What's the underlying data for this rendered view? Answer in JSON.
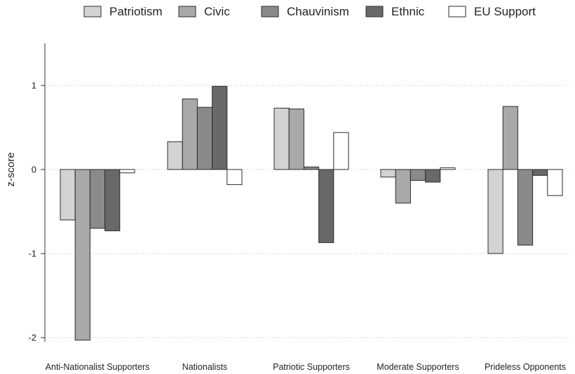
{
  "chart_data": {
    "type": "bar",
    "ylabel": "z-score",
    "ylim": [
      -2.05,
      1.5
    ],
    "yticks": [
      1,
      0,
      -1,
      -2
    ],
    "ytick_labels": [
      "1",
      "0",
      "-1",
      "-2"
    ],
    "grid": "horizontal-dotted",
    "legend_position": "top",
    "categories": [
      "Anti-Nationalist Supporters",
      "Nationalists",
      "Patriotic Supporters",
      "Moderate Supporters",
      "Prideless Opponents"
    ],
    "series": [
      {
        "name": "Patriotism",
        "color": "#d3d3d3",
        "values": [
          -0.6,
          0.33,
          0.73,
          -0.09,
          -1.0
        ]
      },
      {
        "name": "Civic",
        "color": "#a9a9a9",
        "values": [
          -2.03,
          0.84,
          0.72,
          -0.4,
          0.75
        ]
      },
      {
        "name": "Chauvinism",
        "color": "#8a8a8a",
        "values": [
          -0.7,
          0.74,
          0.03,
          -0.13,
          -0.9
        ]
      },
      {
        "name": "Ethnic",
        "color": "#686868",
        "values": [
          -0.73,
          0.99,
          -0.87,
          -0.15,
          -0.07
        ]
      },
      {
        "name": "EU Support",
        "color": "#ffffff",
        "values": [
          -0.04,
          -0.18,
          0.44,
          0.02,
          -0.31
        ]
      }
    ]
  }
}
